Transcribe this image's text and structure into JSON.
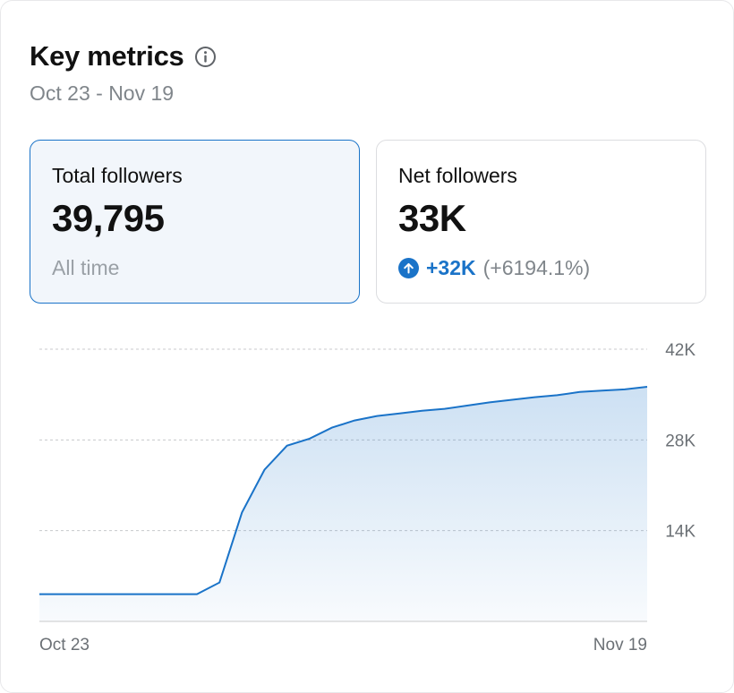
{
  "header": {
    "title": "Key metrics",
    "date_range": "Oct 23 - Nov 19"
  },
  "metrics": {
    "total": {
      "label": "Total followers",
      "value": "39,795",
      "sub": "All time"
    },
    "net": {
      "label": "Net followers",
      "value": "33K",
      "change": "+32K",
      "change_pct": "(+6194.1%)"
    }
  },
  "colors": {
    "accent": "#1a73c8",
    "selected_card_bg": "#f2f6fb",
    "muted_text": "#80868b"
  },
  "icons": {
    "info": "info-icon",
    "change": "arrow-up-circle-icon"
  },
  "chart_data": {
    "type": "area",
    "x_tick_labels": [
      "Oct 23",
      "Nov 19"
    ],
    "y_tick_labels": [
      "14K",
      "28K",
      "42K"
    ],
    "yticks": [
      14000,
      28000,
      42000
    ],
    "ylim": [
      0,
      42000
    ],
    "y_axis_position": "right",
    "grid": true,
    "x": [
      "Oct 23",
      "Oct 24",
      "Oct 25",
      "Oct 26",
      "Oct 27",
      "Oct 28",
      "Oct 29",
      "Oct 30",
      "Oct 31",
      "Nov 1",
      "Nov 2",
      "Nov 3",
      "Nov 4",
      "Nov 5",
      "Nov 6",
      "Nov 7",
      "Nov 8",
      "Nov 9",
      "Nov 10",
      "Nov 11",
      "Nov 12",
      "Nov 13",
      "Nov 14",
      "Nov 15",
      "Nov 16",
      "Nov 17",
      "Nov 18",
      "Nov 19"
    ],
    "values": [
      4200,
      4200,
      4200,
      4200,
      4200,
      4200,
      4200,
      4200,
      6000,
      16800,
      23400,
      27100,
      28200,
      29900,
      31000,
      31700,
      32100,
      32500,
      32800,
      33300,
      33800,
      34200,
      34600,
      34900,
      35400,
      35600,
      35800,
      36200
    ]
  }
}
